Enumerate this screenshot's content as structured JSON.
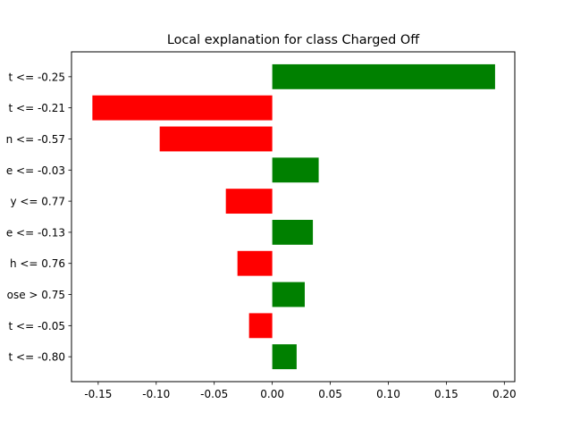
{
  "chart_data": {
    "type": "bar",
    "orientation": "horizontal",
    "title": "Local explanation for class Charged Off",
    "xlabel": "",
    "ylabel": "",
    "xlim": [
      -0.173,
      0.209
    ],
    "xticks": [
      "-0.15",
      "-0.10",
      "-0.05",
      "0.00",
      "0.05",
      "0.10",
      "0.15",
      "0.20"
    ],
    "xtick_values": [
      -0.15,
      -0.1,
      -0.05,
      0.0,
      0.05,
      0.1,
      0.15,
      0.2
    ],
    "categories": [
      "t <= -0.25",
      "t <= -0.21",
      "n <= -0.57",
      "e <= -0.03",
      "y <= 0.77",
      "e <= -0.13",
      "h <= 0.76",
      "ose > 0.75",
      "t <= -0.05",
      "t <= -0.80"
    ],
    "values": [
      0.192,
      -0.155,
      -0.097,
      0.04,
      -0.04,
      0.035,
      -0.03,
      0.028,
      -0.02,
      0.021
    ],
    "colors": {
      "positive": "#008000",
      "negative": "#ff0000"
    },
    "grid": false,
    "legend": "none"
  }
}
